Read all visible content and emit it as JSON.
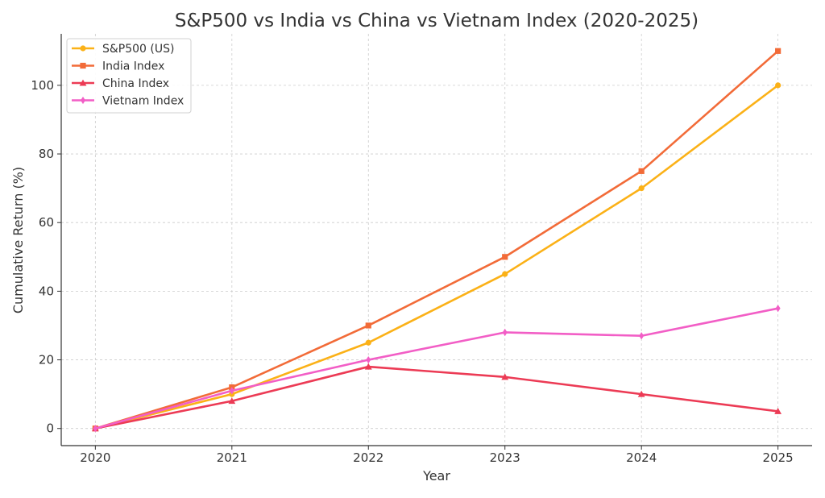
{
  "chart_data": {
    "type": "line",
    "title": "S&P500 vs India vs China vs Vietnam Index (2020-2025)",
    "xlabel": "Year",
    "ylabel": "Cumulative Return (%)",
    "x": [
      2020,
      2021,
      2022,
      2023,
      2024,
      2025
    ],
    "x_tick_labels": [
      "2020",
      "2021",
      "2022",
      "2023",
      "2024",
      "2025"
    ],
    "y_ticks": [
      0,
      20,
      40,
      60,
      80,
      100
    ],
    "y_tick_labels": [
      "0",
      "20",
      "40",
      "60",
      "80",
      "100"
    ],
    "ylim": [
      -5,
      115
    ],
    "grid": true,
    "legend_position": "top-left",
    "series": [
      {
        "name": "S&P500 (US)",
        "values": [
          0,
          10,
          25,
          45,
          70,
          100
        ],
        "color": "#FBB117",
        "marker": "circle"
      },
      {
        "name": "India Index",
        "values": [
          0,
          12,
          30,
          50,
          75,
          110
        ],
        "color": "#F26B38",
        "marker": "square"
      },
      {
        "name": "China Index",
        "values": [
          0,
          8,
          18,
          15,
          10,
          5
        ],
        "color": "#EC3B55",
        "marker": "triangle"
      },
      {
        "name": "Vietnam Index",
        "values": [
          0,
          11,
          20,
          28,
          27,
          35
        ],
        "color": "#F25EC6",
        "marker": "diamond"
      }
    ]
  }
}
